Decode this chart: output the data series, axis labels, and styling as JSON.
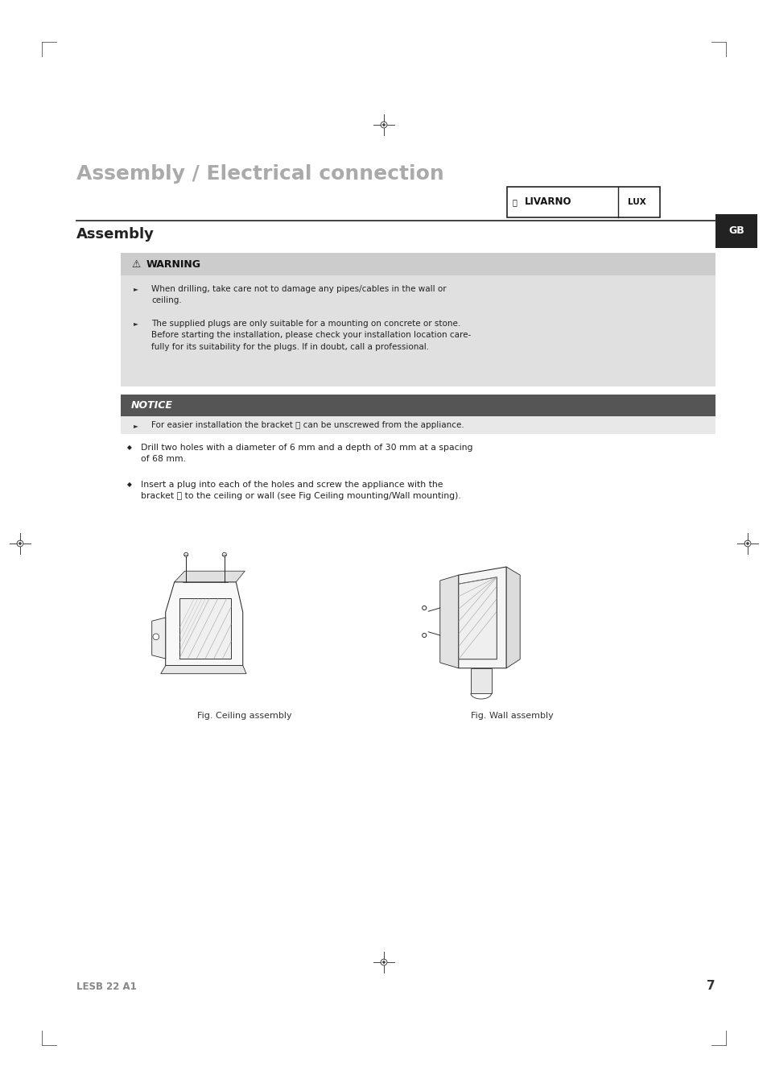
{
  "bg_color": "#ffffff",
  "page_width": 9.54,
  "page_height": 13.5,
  "title": "Assembly / Electrical connection",
  "section_title": "Assembly",
  "warning_bg": "#e0e0e0",
  "warning_title_bg": "#cccccc",
  "warning_lines": [
    "When drilling, take care not to damage any pipes/cables in the wall or\nceiling.",
    "The supplied plugs are only suitable for a mounting on concrete or stone.\nBefore starting the installation, please check your installation location care-\nfully for its suitability for the plugs. If in doubt, call a professional."
  ],
  "notice_title": "NOTICE",
  "notice_bg": "#555555",
  "notice_line": "For easier installation the bracket ⓔ can be unscrewed from the appliance.",
  "notice_line_bg": "#e8e8e8",
  "bullet_lines": [
    "Drill two holes with a diameter of 6 mm and a depth of 30 mm at a spacing\nof 68 mm.",
    "Insert a plug into each of the holes and screw the appliance with the\nbracket ⓔ to the ceiling or wall (see Fig Ceiling mounting/Wall mounting)."
  ],
  "fig1_caption": "Fig. Ceiling assembly",
  "fig2_caption": "Fig. Wall assembly",
  "footer_model": "LESB 22 A1",
  "footer_page": "7",
  "tab_label": "GB",
  "tab_color": "#222222",
  "title_color": "#aaaaaa",
  "title_line_color": "#333333",
  "section_title_color": "#222222",
  "footer_color": "#888888",
  "crosshair_color": "#444444",
  "trim_color": "#555555"
}
